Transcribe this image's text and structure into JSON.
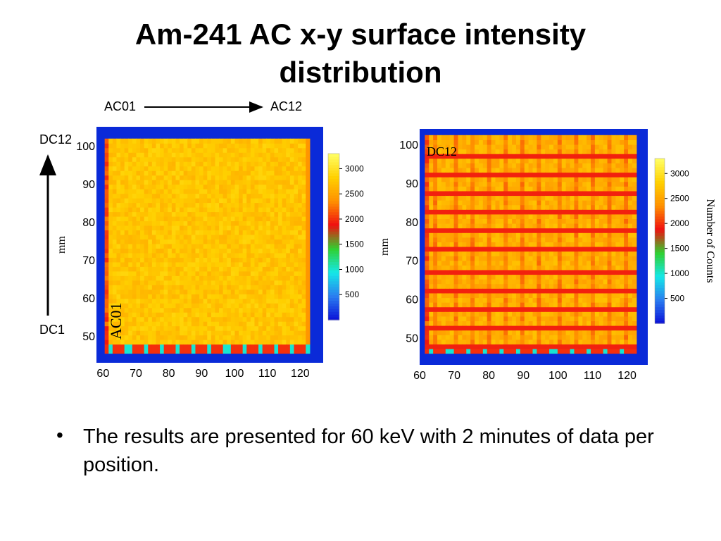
{
  "title": {
    "line1": "Am-241 AC x-y surface intensity",
    "line2": "distribution"
  },
  "annotations": {
    "ac_start": "AC01",
    "ac_end": "AC12",
    "dc_top": "DC12",
    "dc_bottom": "DC1"
  },
  "bullet": "The results are presented for 60 keV with 2 minutes of data per position.",
  "colorscale": {
    "ticks": [
      500,
      1000,
      1500,
      2000,
      2500,
      3000
    ],
    "range": [
      0,
      3300
    ],
    "colors": [
      "#0a10d8",
      "#2a7df0",
      "#15e8e8",
      "#30d030",
      "#f01010",
      "#ff9000",
      "#ffd000",
      "#ffff66"
    ]
  },
  "chart_data": [
    {
      "type": "heatmap",
      "title": "",
      "xlabel": "",
      "ylabel": "mm",
      "xlim": [
        58,
        127
      ],
      "ylim": [
        43,
        105
      ],
      "x_ticks": [
        60,
        70,
        80,
        90,
        100,
        110,
        120
      ],
      "y_ticks": [
        50,
        60,
        70,
        80,
        90,
        100
      ],
      "inner_labels": [
        "AC01"
      ],
      "colorbar_label": "",
      "detector_region": {
        "x": [
          60.5,
          122.5
        ],
        "y": [
          45.5,
          101.5
        ]
      },
      "typical_counts": 2750,
      "features": [
        {
          "type": "row_of_dead_spots",
          "y": 47.0,
          "counts": 1000
        },
        {
          "type": "edge_band",
          "side": "bottom",
          "counts": 1800
        },
        {
          "type": "edge_band",
          "side": "right",
          "counts": 2400
        }
      ]
    },
    {
      "type": "heatmap",
      "title": "",
      "xlabel": "",
      "ylabel": "mm",
      "xlim": [
        60,
        126
      ],
      "ylim": [
        43,
        104
      ],
      "x_ticks": [
        60,
        70,
        80,
        90,
        100,
        110,
        120
      ],
      "y_ticks": [
        50,
        60,
        70,
        80,
        90,
        100
      ],
      "inner_labels": [
        "DC12"
      ],
      "colorbar_label": "Number of Counts",
      "detector_region": {
        "x": [
          61.5,
          122
        ],
        "y": [
          46,
          101.5
        ]
      },
      "typical_counts": 2600,
      "features": [
        {
          "type": "horizontal_gaps",
          "y": [
            97.5,
            92.5,
            87.5,
            82.5,
            77.5,
            72.5,
            67.5,
            62.5,
            57.5,
            52.5,
            47.5
          ],
          "counts": 1950
        },
        {
          "type": "vertical_lines",
          "x": [
            65,
            70,
            75,
            80,
            85,
            90,
            95,
            100,
            105,
            110,
            115,
            120
          ],
          "counts": 2300
        },
        {
          "type": "row_of_dead_spots",
          "y": 46.5,
          "counts": 1000
        }
      ]
    }
  ]
}
